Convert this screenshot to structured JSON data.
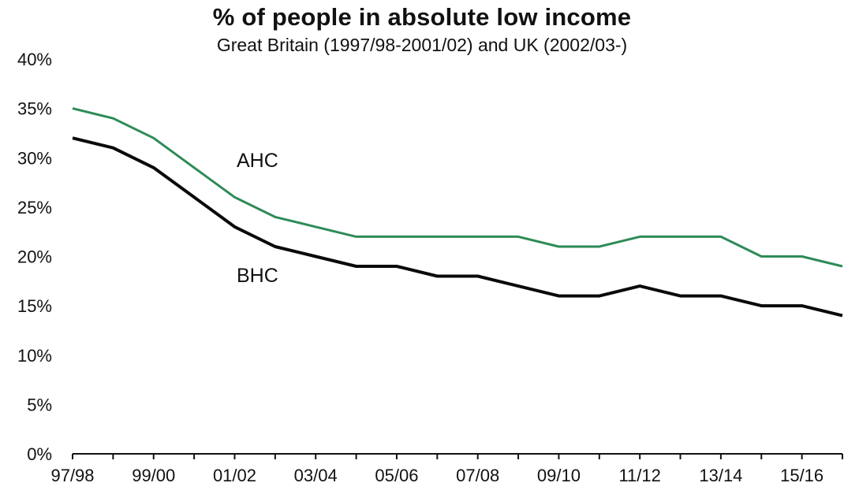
{
  "chart_data": {
    "type": "line",
    "title": "% of people in absolute low income",
    "subtitle": "Great Britain (1997/98-2001/02) and UK (2002/03-)",
    "xlabel": "",
    "ylabel": "",
    "ylim": [
      0,
      40
    ],
    "yticks": [
      0,
      5,
      10,
      15,
      20,
      25,
      30,
      35,
      40
    ],
    "ytick_labels": [
      "0%",
      "5%",
      "10%",
      "15%",
      "20%",
      "25%",
      "30%",
      "35%",
      "40%"
    ],
    "categories": [
      "97/98",
      "98/99",
      "99/00",
      "00/01",
      "01/02",
      "02/03",
      "03/04",
      "04/05",
      "05/06",
      "06/07",
      "07/08",
      "08/09",
      "09/10",
      "10/11",
      "11/12",
      "12/13",
      "13/14",
      "14/15",
      "15/16",
      "16/17"
    ],
    "xtick_labels_shown": [
      "97/98",
      "99/00",
      "01/02",
      "03/04",
      "05/06",
      "07/08",
      "09/10",
      "11/12",
      "13/14",
      "15/16"
    ],
    "grid": false,
    "series": [
      {
        "name": "AHC",
        "color": "#2e8b57",
        "values": [
          35,
          34,
          32,
          29,
          26,
          24,
          23,
          22,
          22,
          22,
          22,
          22,
          21,
          21,
          22,
          22,
          22,
          20,
          20,
          19
        ]
      },
      {
        "name": "BHC",
        "color": "#0a0a0a",
        "values": [
          32,
          31,
          29,
          26,
          23,
          21,
          20,
          19,
          19,
          18,
          18,
          17,
          16,
          16,
          17,
          16,
          16,
          15,
          15,
          14
        ]
      }
    ]
  }
}
